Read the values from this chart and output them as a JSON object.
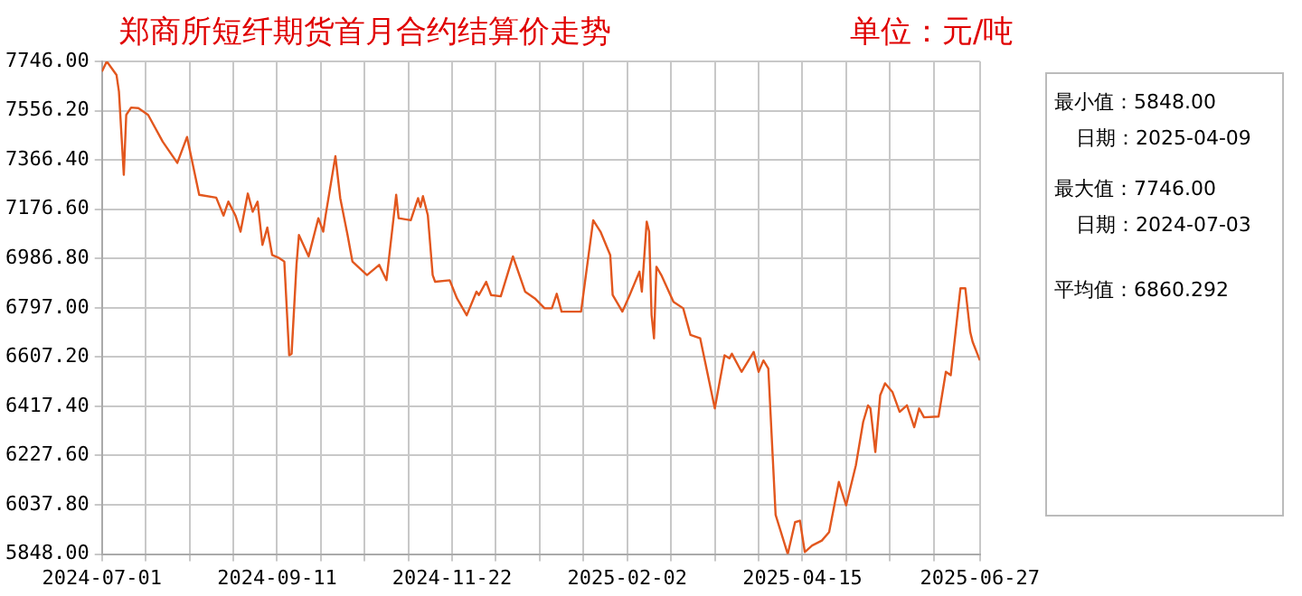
{
  "chart_data": {
    "type": "line",
    "title": "郑商所短纤期货首月合约结算价走势",
    "subtitle": "单位：元/吨",
    "annotations": [
      "最小值：5848.00",
      "日期：2025-04-09",
      "最大值：7746.00",
      "日期：2024-07-03",
      "平均值：6860.292"
    ],
    "x": [
      "2024-07-01",
      "2024-07-03",
      "2024-07-07",
      "2024-07-08",
      "2024-07-10",
      "2024-07-11",
      "2024-07-13",
      "2024-07-16",
      "2024-07-20",
      "2024-07-26",
      "2024-08-01",
      "2024-08-05",
      "2024-08-10",
      "2024-08-17",
      "2024-08-20",
      "2024-08-22",
      "2024-08-25",
      "2024-08-27",
      "2024-08-30",
      "2024-09-01",
      "2024-09-03",
      "2024-09-05",
      "2024-09-07",
      "2024-09-09",
      "2024-09-12",
      "2024-09-14",
      "2024-09-16",
      "2024-09-17",
      "2024-09-19",
      "2024-09-20",
      "2024-09-24",
      "2024-09-28",
      "2024-09-30",
      "2024-10-01",
      "2024-10-05",
      "2024-10-07",
      "2024-10-10",
      "2024-10-12",
      "2024-10-18",
      "2024-10-23",
      "2024-10-26",
      "2024-10-30",
      "2024-10-31",
      "2024-11-05",
      "2024-11-08",
      "2024-11-09",
      "2024-11-10",
      "2024-11-12",
      "2024-11-14",
      "2024-11-15",
      "2024-11-21",
      "2024-11-24",
      "2024-11-28",
      "2024-12-02",
      "2024-12-03",
      "2024-12-06",
      "2024-12-08",
      "2024-12-12",
      "2024-12-17",
      "2024-12-22",
      "2024-12-26",
      "2024-12-30",
      "2025-01-02",
      "2025-01-04",
      "2025-01-06",
      "2025-01-14",
      "2025-01-19",
      "2025-01-22",
      "2025-01-26",
      "2025-01-27",
      "2025-01-31",
      "2025-02-03",
      "2025-02-07",
      "2025-02-08",
      "2025-02-10",
      "2025-02-11",
      "2025-02-12",
      "2025-02-13",
      "2025-02-14",
      "2025-02-16",
      "2025-02-21",
      "2025-02-25",
      "2025-02-28",
      "2025-03-04",
      "2025-03-06",
      "2025-03-10",
      "2025-03-12",
      "2025-03-14",
      "2025-03-16",
      "2025-03-17",
      "2025-03-21",
      "2025-03-26",
      "2025-03-28",
      "2025-03-30",
      "2025-04-01",
      "2025-04-04",
      "2025-04-09",
      "2025-04-12",
      "2025-04-14",
      "2025-04-16",
      "2025-04-19",
      "2025-04-23",
      "2025-04-26",
      "2025-04-30",
      "2025-05-03",
      "2025-05-07",
      "2025-05-10",
      "2025-05-12",
      "2025-05-13",
      "2025-05-15",
      "2025-05-17",
      "2025-05-19",
      "2025-05-22",
      "2025-05-25",
      "2025-05-28",
      "2025-05-31",
      "2025-06-02",
      "2025-06-04",
      "2025-06-10",
      "2025-06-13",
      "2025-06-15",
      "2025-06-17",
      "2025-06-19",
      "2025-06-21",
      "2025-06-23",
      "2025-06-24",
      "2025-06-27"
    ],
    "values": [
      7707,
      7746,
      7694,
      7630,
      7309,
      7540,
      7568,
      7566,
      7540,
      7437,
      7355,
      7455,
      7232,
      7221,
      7152,
      7206,
      7150,
      7090,
      7237,
      7167,
      7206,
      7039,
      7106,
      7000,
      6988,
      6975,
      6614,
      6620,
      6962,
      7077,
      6995,
      7142,
      7090,
      7154,
      7381,
      7219,
      7077,
      6975,
      6923,
      6962,
      6903,
      7232,
      7142,
      7134,
      7219,
      7185,
      7227,
      7154,
      6923,
      6897,
      6903,
      6833,
      6768,
      6859,
      6846,
      6897,
      6846,
      6841,
      6995,
      6859,
      6833,
      6795,
      6795,
      6851,
      6782,
      6782,
      7134,
      7090,
      7000,
      6846,
      6782,
      6846,
      6936,
      6859,
      7129,
      7090,
      6769,
      6679,
      6955,
      6923,
      6820,
      6795,
      6692,
      6679,
      6589,
      6409,
      6512,
      6614,
      6602,
      6620,
      6550,
      6627,
      6550,
      6594,
      6563,
      5999,
      5848,
      5971,
      5977,
      5856,
      5881,
      5900,
      5933,
      6126,
      6036,
      6190,
      6357,
      6421,
      6409,
      6241,
      6460,
      6506,
      6473,
      6396,
      6421,
      6337,
      6409,
      6375,
      6378,
      6550,
      6537,
      6704,
      6872,
      6872,
      6704,
      6666,
      6594
    ],
    "color": "#e2571e",
    "xlim": [
      "2024-07-01",
      "2025-06-27"
    ],
    "xticks": [
      {
        "value": "2024-07-01",
        "label": "2024-07-01"
      },
      {
        "value": "2024-07-19",
        "label": null
      },
      {
        "value": "2024-08-06",
        "label": null
      },
      {
        "value": "2024-08-24",
        "label": null
      },
      {
        "value": "2024-09-11",
        "label": "2024-09-11"
      },
      {
        "value": "2024-09-29",
        "label": null
      },
      {
        "value": "2024-10-17",
        "label": null
      },
      {
        "value": "2024-11-04",
        "label": null
      },
      {
        "value": "2024-11-22",
        "label": "2024-11-22"
      },
      {
        "value": "2024-12-10",
        "label": null
      },
      {
        "value": "2024-12-28",
        "label": null
      },
      {
        "value": "2025-01-15",
        "label": null
      },
      {
        "value": "2025-02-02",
        "label": "2025-02-02"
      },
      {
        "value": "2025-02-20",
        "label": null
      },
      {
        "value": "2025-03-10",
        "label": null
      },
      {
        "value": "2025-03-28",
        "label": null
      },
      {
        "value": "2025-04-15",
        "label": "2025-04-15"
      },
      {
        "value": "2025-05-03",
        "label": null
      },
      {
        "value": "2025-05-21",
        "label": null
      },
      {
        "value": "2025-06-08",
        "label": null
      },
      {
        "value": "2025-06-27",
        "label": "2025-06-27"
      }
    ],
    "ylim": [
      5848,
      7746
    ],
    "yticks": [
      {
        "value": 5848,
        "label": "5848.00"
      },
      {
        "value": 6037.8,
        "label": "6037.80"
      },
      {
        "value": 6227.6,
        "label": "6227.60"
      },
      {
        "value": 6417.4,
        "label": "6417.40"
      },
      {
        "value": 6607.2,
        "label": "6607.20"
      },
      {
        "value": 6797,
        "label": "6797.00"
      },
      {
        "value": 6986.8,
        "label": "6986.80"
      },
      {
        "value": 7176.6,
        "label": "7176.60"
      },
      {
        "value": 7366.4,
        "label": "7366.40"
      },
      {
        "value": 7556.2,
        "label": "7556.20"
      },
      {
        "value": 7746,
        "label": "7746.00"
      }
    ],
    "grid": true
  }
}
